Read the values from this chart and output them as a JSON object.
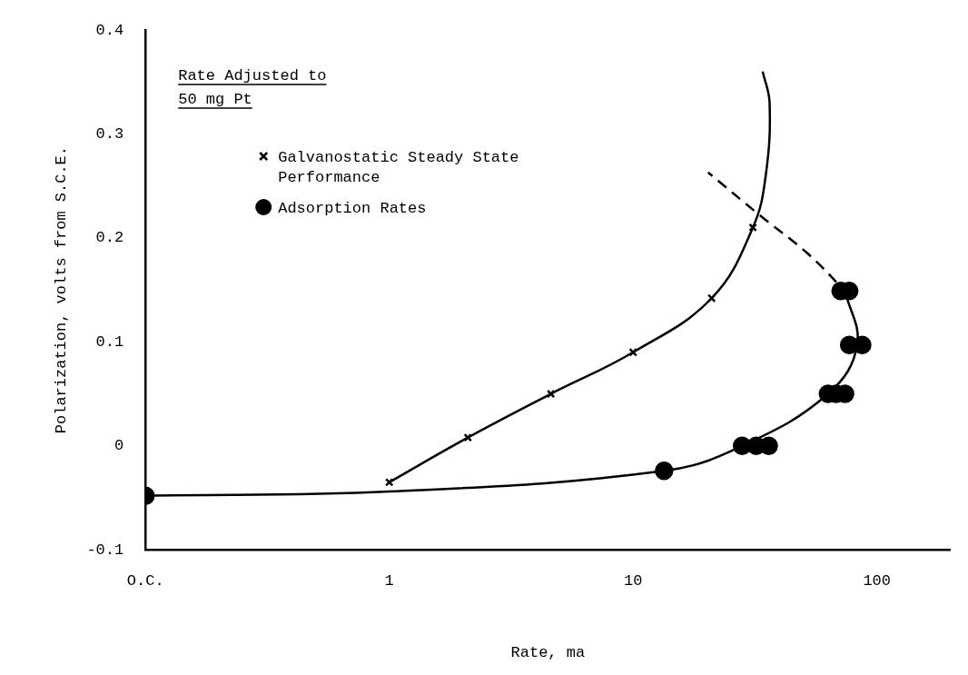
{
  "chart_data": {
    "type": "scatter",
    "xlabel": "Rate, ma",
    "ylabel": "Polarization, volts from S.C.E.",
    "annotations": [
      "Rate Adjusted to 50 mg Pt"
    ],
    "log": "x",
    "grid": false,
    "legend": "top left",
    "xlim": [
      0.1,
      200
    ],
    "xticks": [
      {
        "value": 0.1,
        "label": "O.C."
      },
      1,
      10,
      100
    ],
    "ylim": [
      -0.1,
      0.4
    ],
    "yticks": [
      -0.1,
      0,
      0.1,
      0.2,
      0.3,
      0.4
    ],
    "series": [
      {
        "name": "Galvanostatic Steady State Performance",
        "type": "scatter",
        "marker": "cross",
        "color": "#000000",
        "x": [
          1,
          2.1,
          4.6,
          10,
          21,
          31
        ],
        "values": [
          -0.035,
          0.008,
          0.05,
          0.09,
          0.142,
          0.21
        ]
      },
      {
        "name": "Adsorption Rates",
        "type": "scatter",
        "marker": "circle",
        "color": "#000000",
        "x": [
          0.1,
          13.4,
          28,
          32,
          36,
          63,
          68,
          74,
          77,
          87,
          71,
          77
        ],
        "values": [
          -0.048,
          -0.024,
          0,
          0,
          0,
          0.05,
          0.05,
          0.05,
          0.097,
          0.097,
          0.149,
          0.149
        ]
      },
      {
        "type": "line",
        "line_style": "solid",
        "marker": "none",
        "color": "#000000",
        "x": [
          1,
          2.1,
          4.6,
          10,
          21,
          31,
          35,
          36.3,
          34
        ],
        "values": [
          -0.035,
          0.008,
          0.05,
          0.09,
          0.142,
          0.21,
          0.26,
          0.33,
          0.36
        ]
      },
      {
        "type": "line",
        "line_style": "solid",
        "marker": "none",
        "color": "#000000",
        "x": [
          0.1,
          1,
          13.4,
          28,
          63,
          83,
          74
        ],
        "values": [
          -0.048,
          -0.044,
          -0.024,
          0,
          0.05,
          0.097,
          0.149
        ]
      },
      {
        "type": "line",
        "line_style": "dashed",
        "marker": "none",
        "color": "#000000",
        "x": [
          74,
          52,
          33,
          20.3
        ],
        "values": [
          0.149,
          0.185,
          0.222,
          0.263
        ]
      }
    ]
  }
}
